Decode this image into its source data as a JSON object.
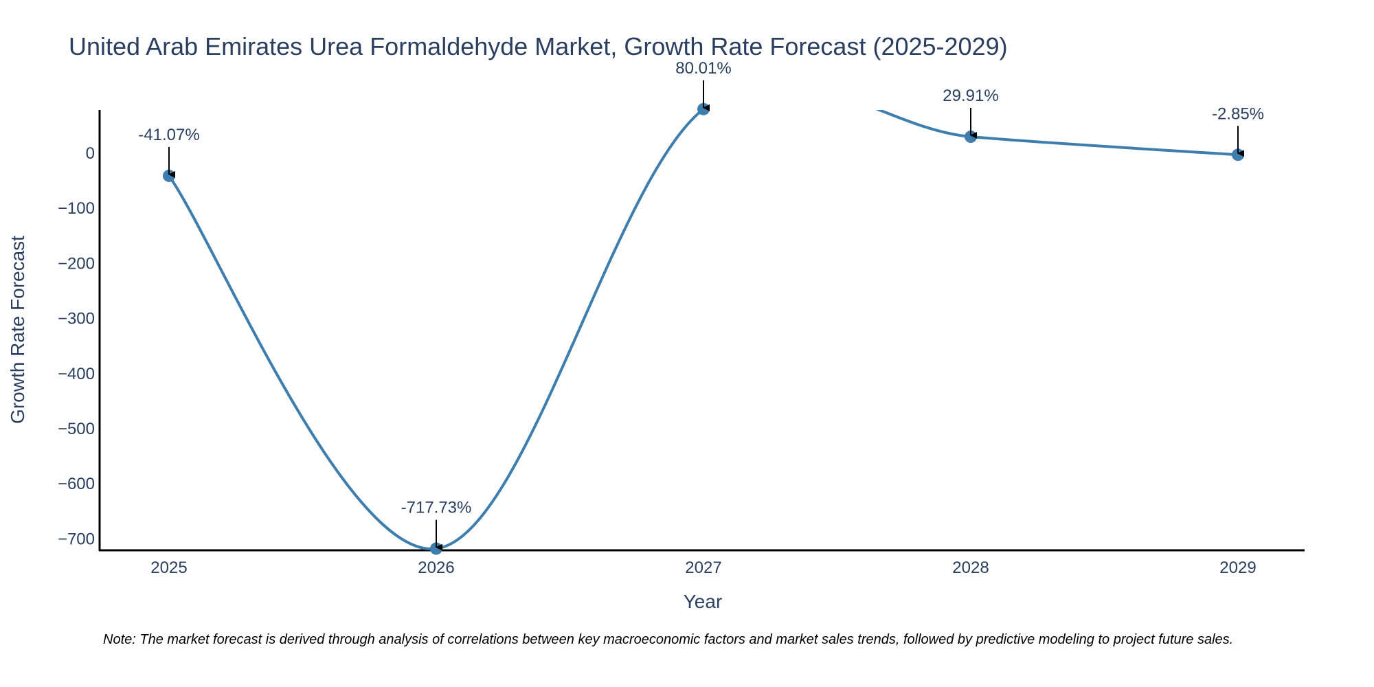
{
  "chart_data": {
    "type": "line",
    "title": "United Arab Emirates Urea Formaldehyde Market, Growth Rate Forecast (2025-2029)",
    "xlabel": "Year",
    "ylabel": "Growth Rate Forecast",
    "categories": [
      "2025",
      "2026",
      "2027",
      "2028",
      "2029"
    ],
    "values": [
      -41.07,
      -717.73,
      80.01,
      29.91,
      -2.85
    ],
    "data_labels": [
      "-41.07%",
      "-717.73%",
      "80.01%",
      "29.91%",
      "-2.85%"
    ],
    "ylim": [
      -720,
      80
    ],
    "yticks": [
      0,
      -100,
      -200,
      -300,
      -400,
      -500,
      -600,
      -700
    ],
    "ytick_labels": [
      "0",
      "−100",
      "−200",
      "−300",
      "−400",
      "−500",
      "−600",
      "−700"
    ],
    "line_color": "#3d7eae",
    "grid": false
  },
  "note": "Note: The market forecast is derived through analysis of correlations between key macroeconomic factors and market sales trends, followed by predictive modeling to project future sales."
}
